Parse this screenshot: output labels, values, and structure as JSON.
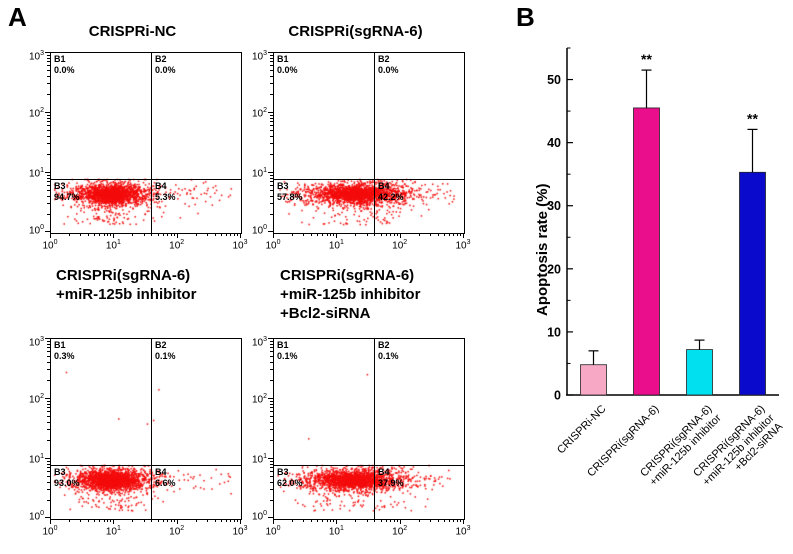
{
  "panels": {
    "a_label": "A",
    "b_label": "B"
  },
  "chart_data": [
    {
      "id": "flow-crispri-nc",
      "type": "scatter",
      "subtype": "flow-cytometry-quadrant",
      "title_lines": [
        "CRISPRi-NC"
      ],
      "x_axis": {
        "scale": "log",
        "tick_exponents": [
          0,
          1,
          2,
          3
        ]
      },
      "y_axis": {
        "scale": "log",
        "tick_exponents": [
          0,
          1,
          2,
          3
        ]
      },
      "quadrants": [
        {
          "name": "B1",
          "value": 0.0
        },
        {
          "name": "B2",
          "value": 0.0
        },
        {
          "name": "B3",
          "value": 94.7
        },
        {
          "name": "B4",
          "value": 5.3
        }
      ],
      "dot_color": "#f40c0c"
    },
    {
      "id": "flow-crispri-sgrna6",
      "type": "scatter",
      "subtype": "flow-cytometry-quadrant",
      "title_lines": [
        "CRISPRi(sgRNA-6)"
      ],
      "x_axis": {
        "scale": "log",
        "tick_exponents": [
          0,
          1,
          2,
          3
        ]
      },
      "y_axis": {
        "scale": "log",
        "tick_exponents": [
          0,
          1,
          2,
          3
        ]
      },
      "quadrants": [
        {
          "name": "B1",
          "value": 0.0
        },
        {
          "name": "B2",
          "value": 0.0
        },
        {
          "name": "B3",
          "value": 57.8
        },
        {
          "name": "B4",
          "value": 42.2
        }
      ],
      "dot_color": "#f40c0c"
    },
    {
      "id": "flow-crispri-sgrna6-mir125b-inhibitor",
      "type": "scatter",
      "subtype": "flow-cytometry-quadrant",
      "title_lines": [
        "CRISPRi(sgRNA-6)",
        "+miR-125b inhibitor"
      ],
      "x_axis": {
        "scale": "log",
        "tick_exponents": [
          0,
          1,
          2,
          3
        ]
      },
      "y_axis": {
        "scale": "log",
        "tick_exponents": [
          0,
          1,
          2,
          3
        ]
      },
      "quadrants": [
        {
          "name": "B1",
          "value": 0.3
        },
        {
          "name": "B2",
          "value": 0.1
        },
        {
          "name": "B3",
          "value": 93.0
        },
        {
          "name": "B4",
          "value": 6.6
        }
      ],
      "dot_color": "#f40c0c"
    },
    {
      "id": "flow-crispri-sgrna6-mir125b-inhibitor-bcl2-sirna",
      "type": "scatter",
      "subtype": "flow-cytometry-quadrant",
      "title_lines": [
        "CRISPRi(sgRNA-6)",
        "+miR-125b inhibitor",
        "+Bcl2-siRNA"
      ],
      "x_axis": {
        "scale": "log",
        "tick_exponents": [
          0,
          1,
          2,
          3
        ]
      },
      "y_axis": {
        "scale": "log",
        "tick_exponents": [
          0,
          1,
          2,
          3
        ]
      },
      "quadrants": [
        {
          "name": "B1",
          "value": 0.1
        },
        {
          "name": "B2",
          "value": 0.1
        },
        {
          "name": "B3",
          "value": 62.0
        },
        {
          "name": "B4",
          "value": 37.9
        }
      ],
      "dot_color": "#f40c0c"
    },
    {
      "id": "apoptosis-bar",
      "type": "bar",
      "title": "",
      "xlabel": "",
      "ylabel": "Apoptosis rate (%)",
      "categories": [
        [
          "CRISPRi-NC"
        ],
        [
          "CRISPRi(sgRNA-6)"
        ],
        [
          "CRISPRi(sgRNA-6)",
          "+miR-125b inhibitor"
        ],
        [
          "CRISPRi(sgRNA-6)",
          "+miR-125b inhibitor",
          "+Bcl2-siRNA"
        ]
      ],
      "values": [
        4.8,
        45.5,
        7.2,
        35.3
      ],
      "errors": [
        2.2,
        6.0,
        1.5,
        6.8
      ],
      "significance": [
        "",
        "**",
        "",
        "**"
      ],
      "bar_colors": [
        "#F7A8C5",
        "#EA0D8C",
        "#00E0EE",
        "#0A0ACD"
      ],
      "ylim": [
        0,
        55
      ],
      "yticks": [
        0,
        10,
        20,
        30,
        40,
        50
      ],
      "grid": false,
      "legend": "none"
    }
  ]
}
